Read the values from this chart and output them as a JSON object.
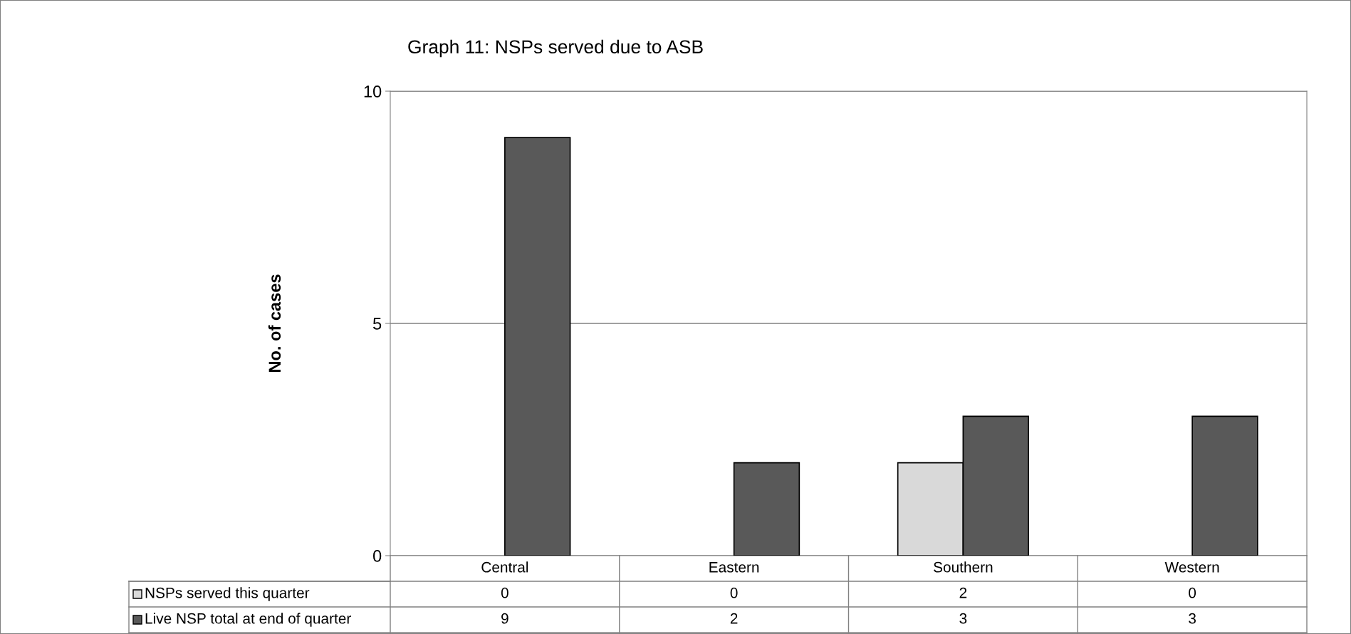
{
  "chart_data": {
    "type": "bar",
    "title": "Graph 11: NSPs served due to ASB",
    "ylabel": "No. of cases",
    "categories": [
      "Central",
      "Eastern",
      "Southern",
      "Western"
    ],
    "series": [
      {
        "name": "NSPs served this quarter",
        "color": "#d9d9d9",
        "values": [
          0,
          0,
          2,
          0
        ]
      },
      {
        "name": "Live NSP total at end of quarter",
        "color": "#595959",
        "values": [
          9,
          2,
          3,
          3
        ]
      }
    ],
    "ylim": [
      0,
      10
    ],
    "yticks": [
      0,
      5,
      10
    ],
    "grid": "y",
    "legend": "bottom",
    "data_labels": true
  }
}
